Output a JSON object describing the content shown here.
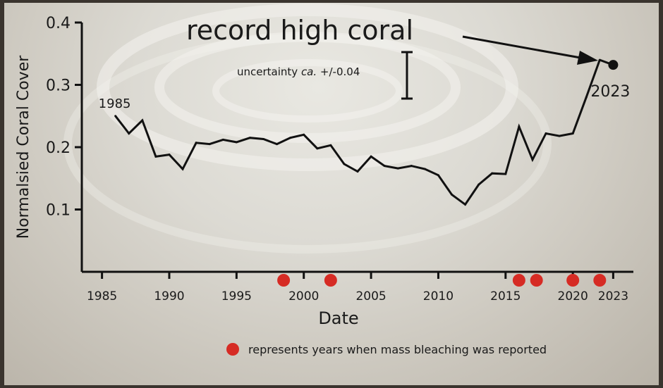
{
  "chart_data": {
    "type": "line",
    "ylabel": "Normalsied Coral Cover",
    "xlabel": "Date",
    "xlim": [
      1983.5,
      2024.5
    ],
    "ylim": [
      0.0,
      0.4
    ],
    "x_ticks": [
      1985,
      1990,
      1995,
      2000,
      2005,
      2010,
      2015,
      2020,
      2023
    ],
    "y_ticks": [
      0.1,
      0.2,
      0.3,
      0.4
    ],
    "y_tick_labels": [
      "0.1",
      "0.2",
      "0.3",
      "0.4"
    ],
    "x_tick_labels": [
      "1985",
      "1990",
      "1995",
      "2000",
      "2005",
      "2010",
      "2015",
      "2020",
      "2023"
    ],
    "grid": false,
    "series": [
      {
        "color": "#111111",
        "x": [
          1986,
          1987,
          1988,
          1989,
          1990,
          1991,
          1992,
          1993,
          1994,
          1995,
          1996,
          1997,
          1998,
          1999,
          2000,
          2001,
          2002,
          2003,
          2004,
          2005,
          2006,
          2007,
          2008,
          2009,
          2010,
          2011,
          2012,
          2013,
          2014,
          2015,
          2016,
          2017,
          2018,
          2019,
          2020,
          2021,
          2022
        ],
        "y": [
          0.25,
          0.222,
          0.243,
          0.185,
          0.188,
          0.165,
          0.207,
          0.205,
          0.212,
          0.208,
          0.215,
          0.213,
          0.205,
          0.215,
          0.22,
          0.198,
          0.203,
          0.173,
          0.161,
          0.185,
          0.17,
          0.166,
          0.17,
          0.165,
          0.155,
          0.124,
          0.108,
          0.14,
          0.158,
          0.157,
          0.233,
          0.18,
          0.222,
          0.218,
          0.222,
          0.28,
          0.34
        ]
      }
    ],
    "endpoint_2023": {
      "x": 2023,
      "y": 0.332
    },
    "bleaching_years": [
      1998.5,
      2002,
      2016,
      2017.3,
      2020,
      2022
    ],
    "bleaching_color": "#d62b24",
    "annotations": {
      "start_label": "1985",
      "end_label": "2023",
      "headline": "record high coral",
      "uncertainty_prefix": "uncertainty ",
      "uncertainty_italic": "ca.",
      "uncertainty_suffix": " +/-0.04",
      "uncertainty_value": 0.04
    },
    "legend": {
      "text": "represents years when mass bleaching was reported",
      "placement": "bottom-right"
    }
  }
}
